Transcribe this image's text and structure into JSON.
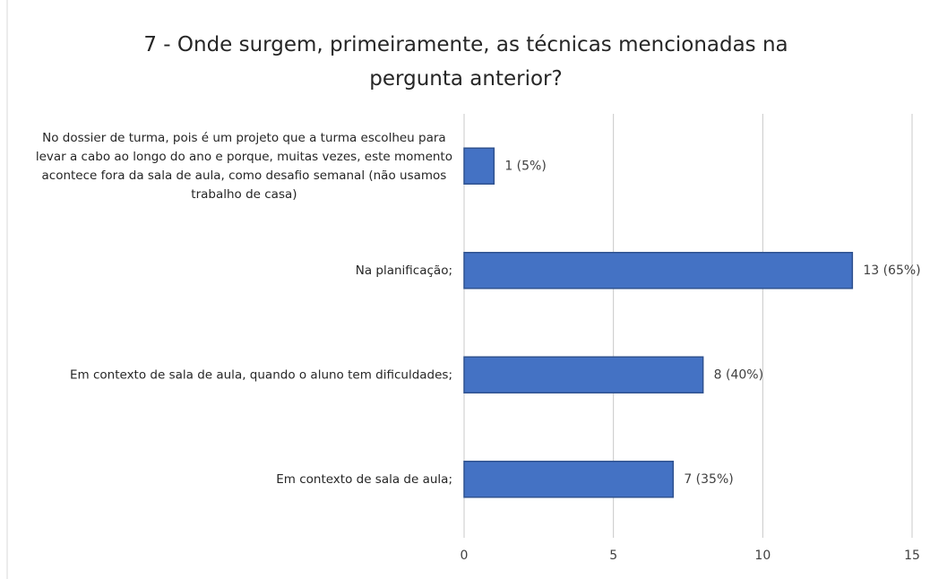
{
  "chart_data": {
    "type": "bar",
    "orientation": "horizontal",
    "title": "7 - Onde surgem, primeiramente, as técnicas mencionadas na pergunta anterior?",
    "categories": [
      "No dossier de turma, pois é um projeto que a turma escolheu para levar a cabo ao longo do ano e porque, muitas vezes, este momento acontece fora da sala de aula, como desafio semanal (não usamos trabalho de casa)",
      "Na planificação;",
      "Em contexto de sala de aula, quando o aluno tem dificuldades;",
      "Em contexto de sala de aula;"
    ],
    "values": [
      1,
      13,
      8,
      7
    ],
    "value_labels": [
      "1 (5%)",
      "13 (65%)",
      "8 (40%)",
      "7 (35%)"
    ],
    "color": "#4472c4",
    "xlim": [
      0,
      15
    ],
    "xticks": [
      0,
      5,
      10,
      15
    ],
    "grid": true
  }
}
